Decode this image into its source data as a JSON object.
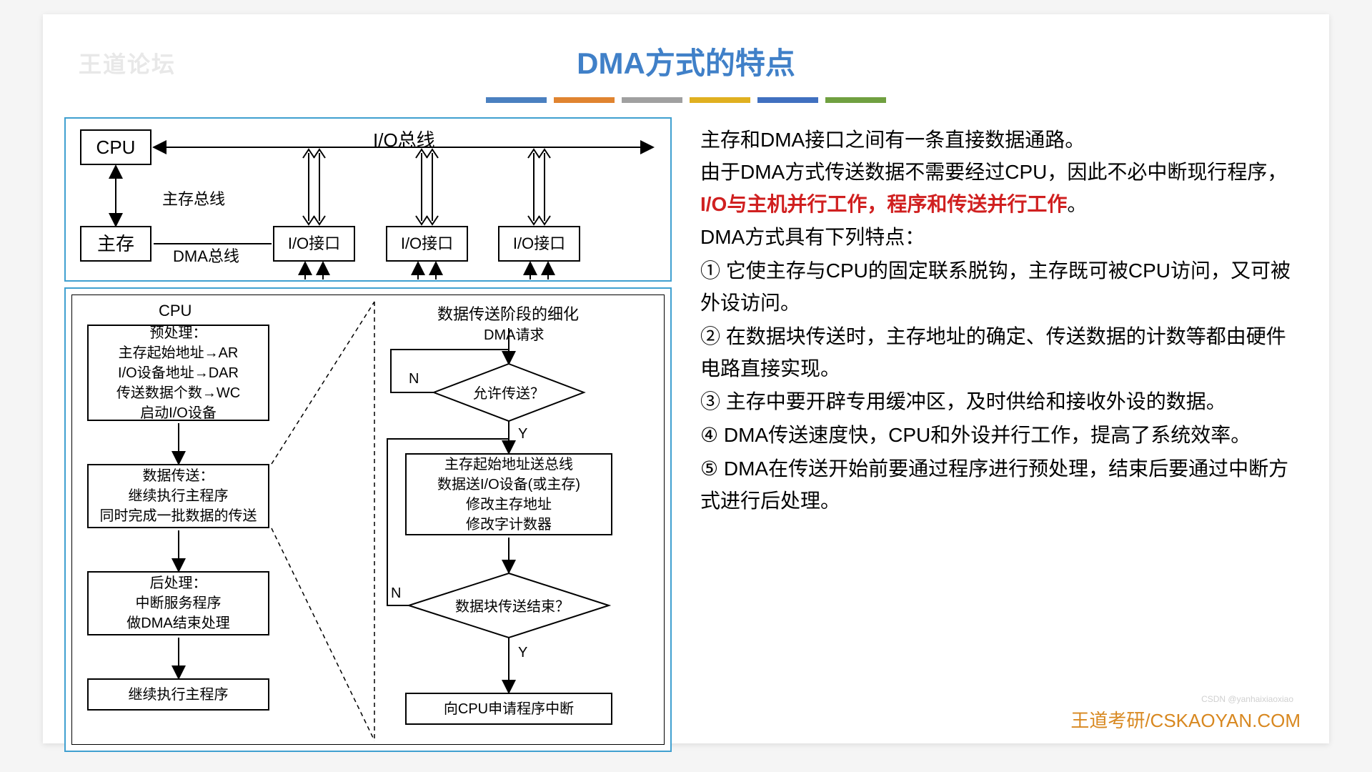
{
  "watermark": "王道论坛",
  "title": "DMA方式的特点",
  "color_bars": [
    "#4a80c0",
    "#e08430",
    "#a0a0a0",
    "#e0b020",
    "#4070c0",
    "#70a040"
  ],
  "footer": "王道考研/CSKAOYAN.COM",
  "csdn": "CSDN @yanhaixiaoxiao",
  "text": {
    "p1a": "主存和DMA接口之间有一条直接数据通路。",
    "p1b": "由于DMA方式传送数据不需要经过CPU，因此不必中断现行程序，",
    "p1_hl": "I/O与主机并行工作，程序和传送并行工作",
    "p1c": "。",
    "p2": "DMA方式具有下列特点：",
    "pt1": "① 它使主存与CPU的固定联系脱钩，主存既可被CPU访问，又可被外设访问。",
    "pt2": "② 在数据块传送时，主存地址的确定、传送数据的计数等都由硬件电路直接实现。",
    "pt3": "③ 主存中要开辟专用缓冲区，及时供给和接收外设的数据。",
    "pt4": "④ DMA传送速度快，CPU和外设并行工作，提高了系统效率。",
    "pt5": "⑤ DMA在传送开始前要通过程序进行预处理，结束后要通过中断方式进行后处理。"
  },
  "top_diagram": {
    "cpu": "CPU",
    "mem": "主存",
    "io": "I/O接口",
    "bus_io": "I/O总线",
    "bus_mem": "主存总线",
    "bus_dma": "DMA总线"
  },
  "flow": {
    "left_title": "CPU",
    "right_title": "数据传送阶段的细化",
    "pre": "预处理：\n主存起始地址→AR\nI/O设备地址→DAR\n传送数据个数→WC\n启动I/O设备",
    "transfer": "数据传送：\n继续执行主程序\n同时完成一批数据的传送",
    "post": "后处理：\n中断服务程序\n做DMA结束处理",
    "cont": "继续执行主程序",
    "dma_req": "DMA请求",
    "allow": "允许传送？",
    "step": "主存起始地址送总线\n数据送I/O设备(或主存)\n修改主存地址\n修改字计数器",
    "done": "数据块传送结束？",
    "intr": "向CPU申请程序中断",
    "Y": "Y",
    "N": "N"
  }
}
